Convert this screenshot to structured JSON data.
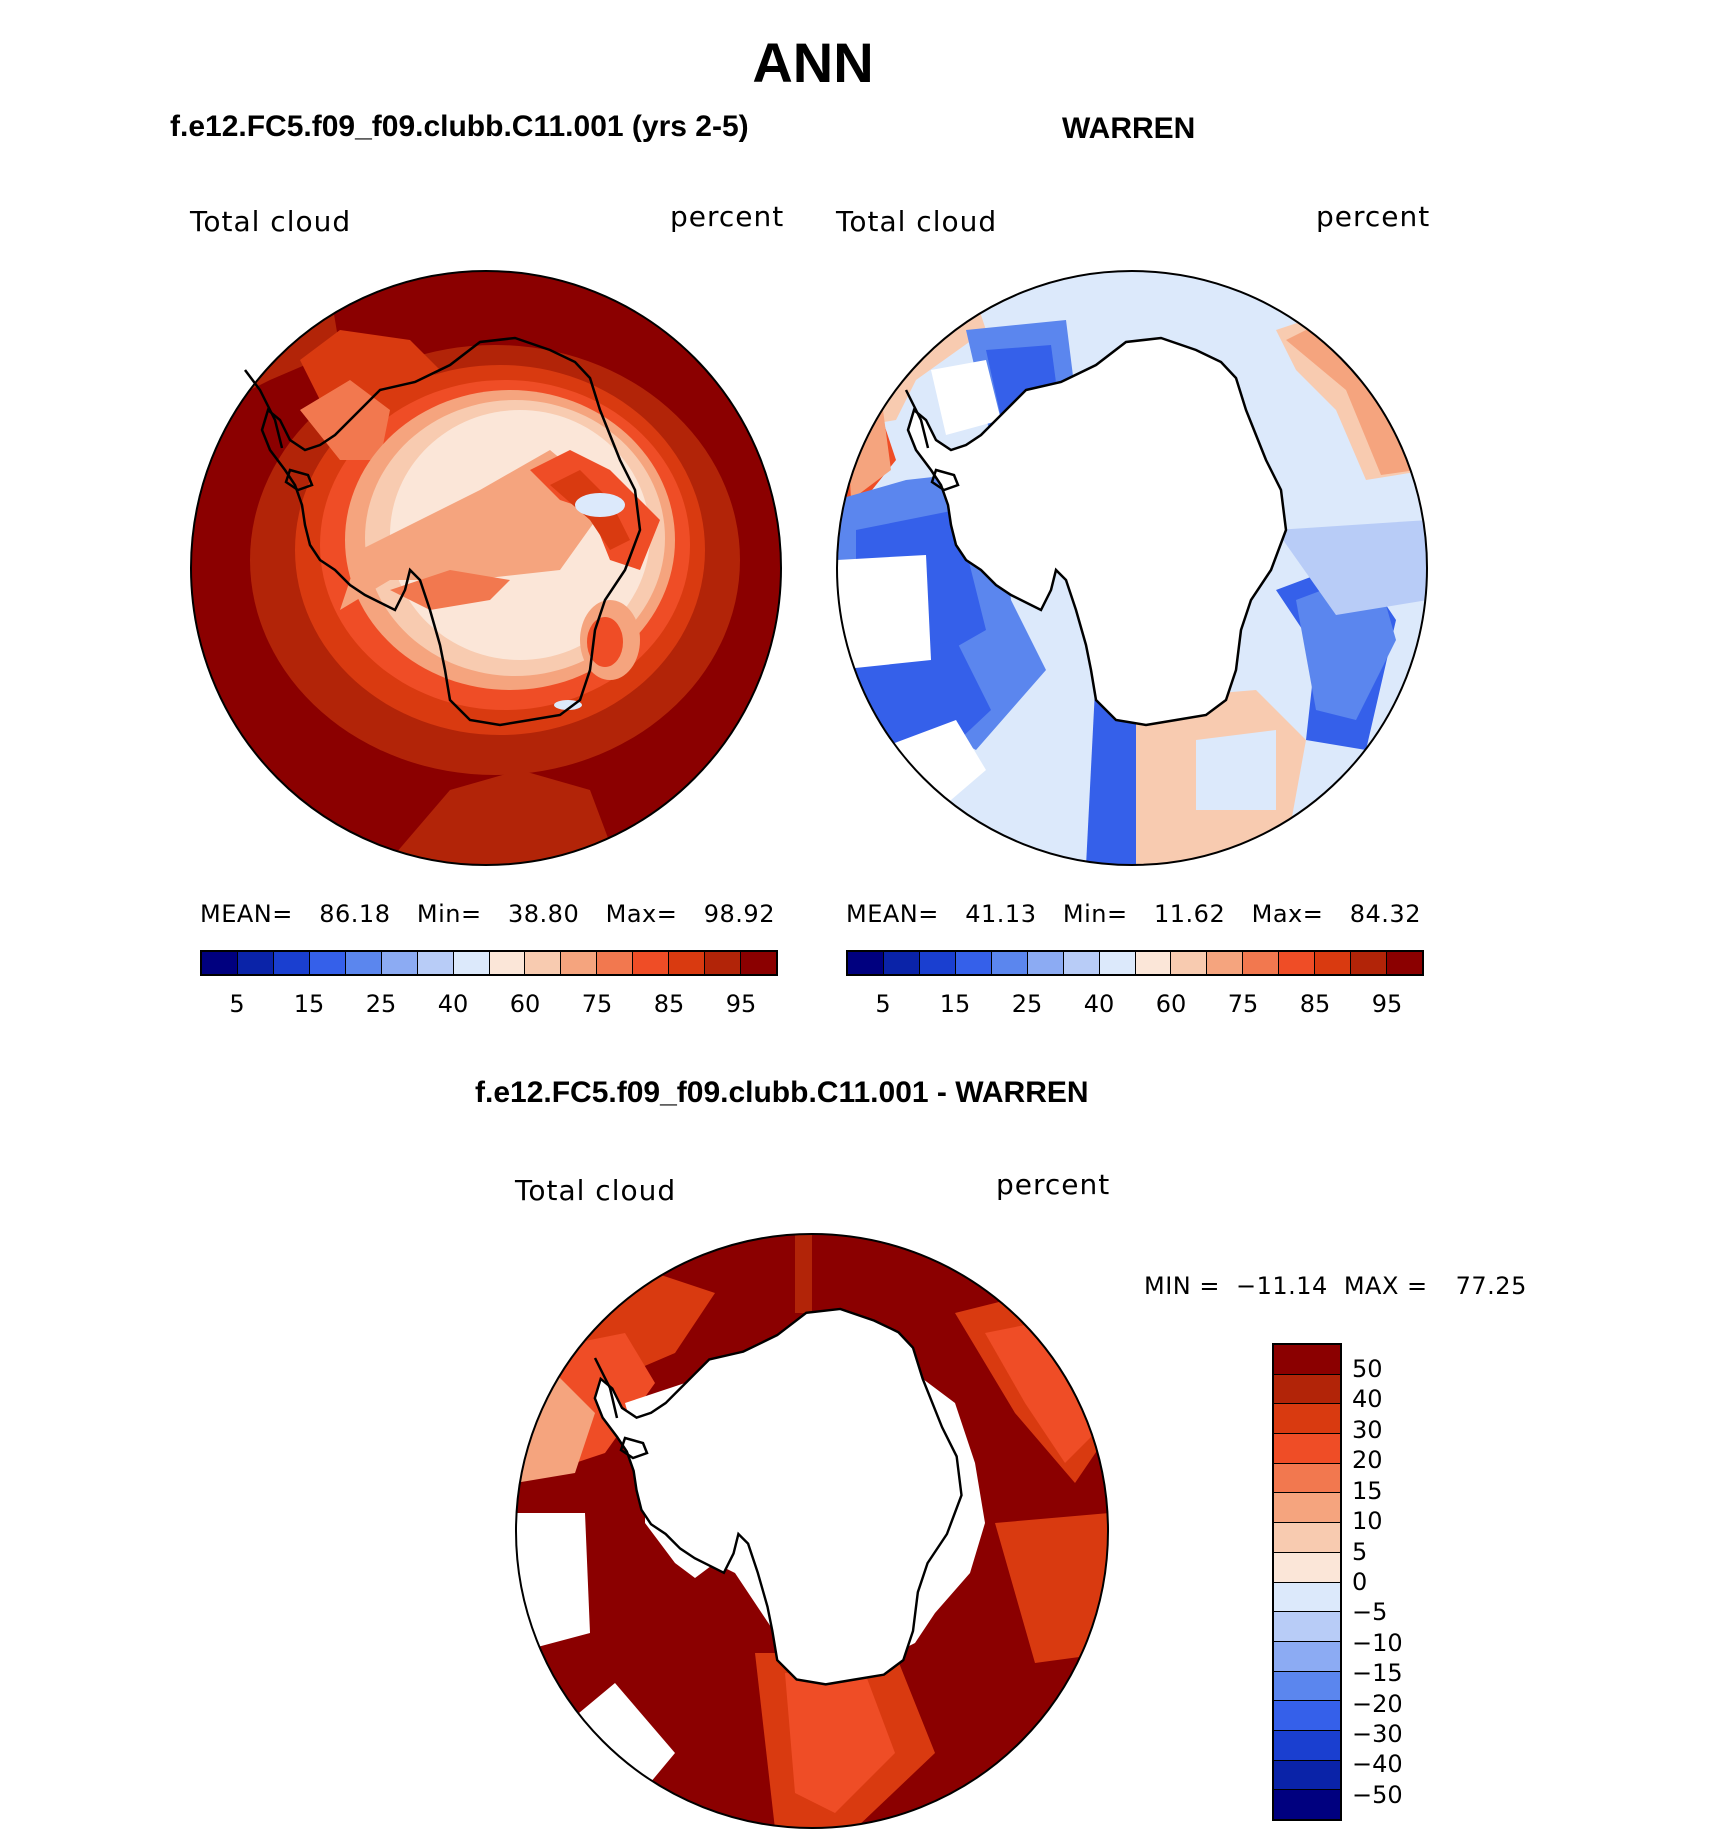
{
  "title": "ANN",
  "top_left": {
    "case": "f.e12.FC5.f09_f09.clubb.C11.001 (yrs 2-5)",
    "variable": "Total cloud",
    "units": "percent",
    "stats": {
      "mean_label": "MEAN=",
      "mean": "86.18",
      "min_label": "Min=",
      "min": "38.80",
      "max_label": "Max=",
      "max": "98.92"
    }
  },
  "top_right": {
    "case": "WARREN",
    "variable": "Total cloud",
    "units": "percent",
    "stats": {
      "mean_label": "MEAN=",
      "mean": "41.13",
      "min_label": "Min=",
      "min": "11.62",
      "max_label": "Max=",
      "max": "84.32"
    }
  },
  "bottom": {
    "case": "f.e12.FC5.f09_f09.clubb.C11.001 - WARREN",
    "variable": "Total cloud",
    "units": "percent",
    "stats": {
      "min_label": "MIN =",
      "min": "−11.14",
      "max_label": "MAX =",
      "max": "77.25"
    }
  },
  "abs_colorbar": {
    "colors": [
      "#00007f",
      "#0a23a8",
      "#1a3fd0",
      "#3560ea",
      "#5b86ee",
      "#8cabf3",
      "#b8ccf7",
      "#dce9fb",
      "#fbe6d8",
      "#f8cbb0",
      "#f5a47e",
      "#f2784f",
      "#ef4d26",
      "#d93a10",
      "#b22408",
      "#8b0000"
    ],
    "labels": [
      "5",
      "15",
      "25",
      "40",
      "60",
      "75",
      "85",
      "95"
    ]
  },
  "diff_colorbar": {
    "colors": [
      "#8b0000",
      "#b22408",
      "#d93a10",
      "#ef4d26",
      "#f2784f",
      "#f5a47e",
      "#f8cbb0",
      "#fbe6d8",
      "#dce9fb",
      "#b8ccf7",
      "#8cabf3",
      "#5b86ee",
      "#3560ea",
      "#1a3fd0",
      "#0a23a8",
      "#00007f"
    ],
    "labels": [
      "50",
      "40",
      "30",
      "20",
      "15",
      "10",
      "5",
      "0",
      "−5",
      "−10",
      "−15",
      "−20",
      "−30",
      "−40",
      "−50"
    ]
  }
}
